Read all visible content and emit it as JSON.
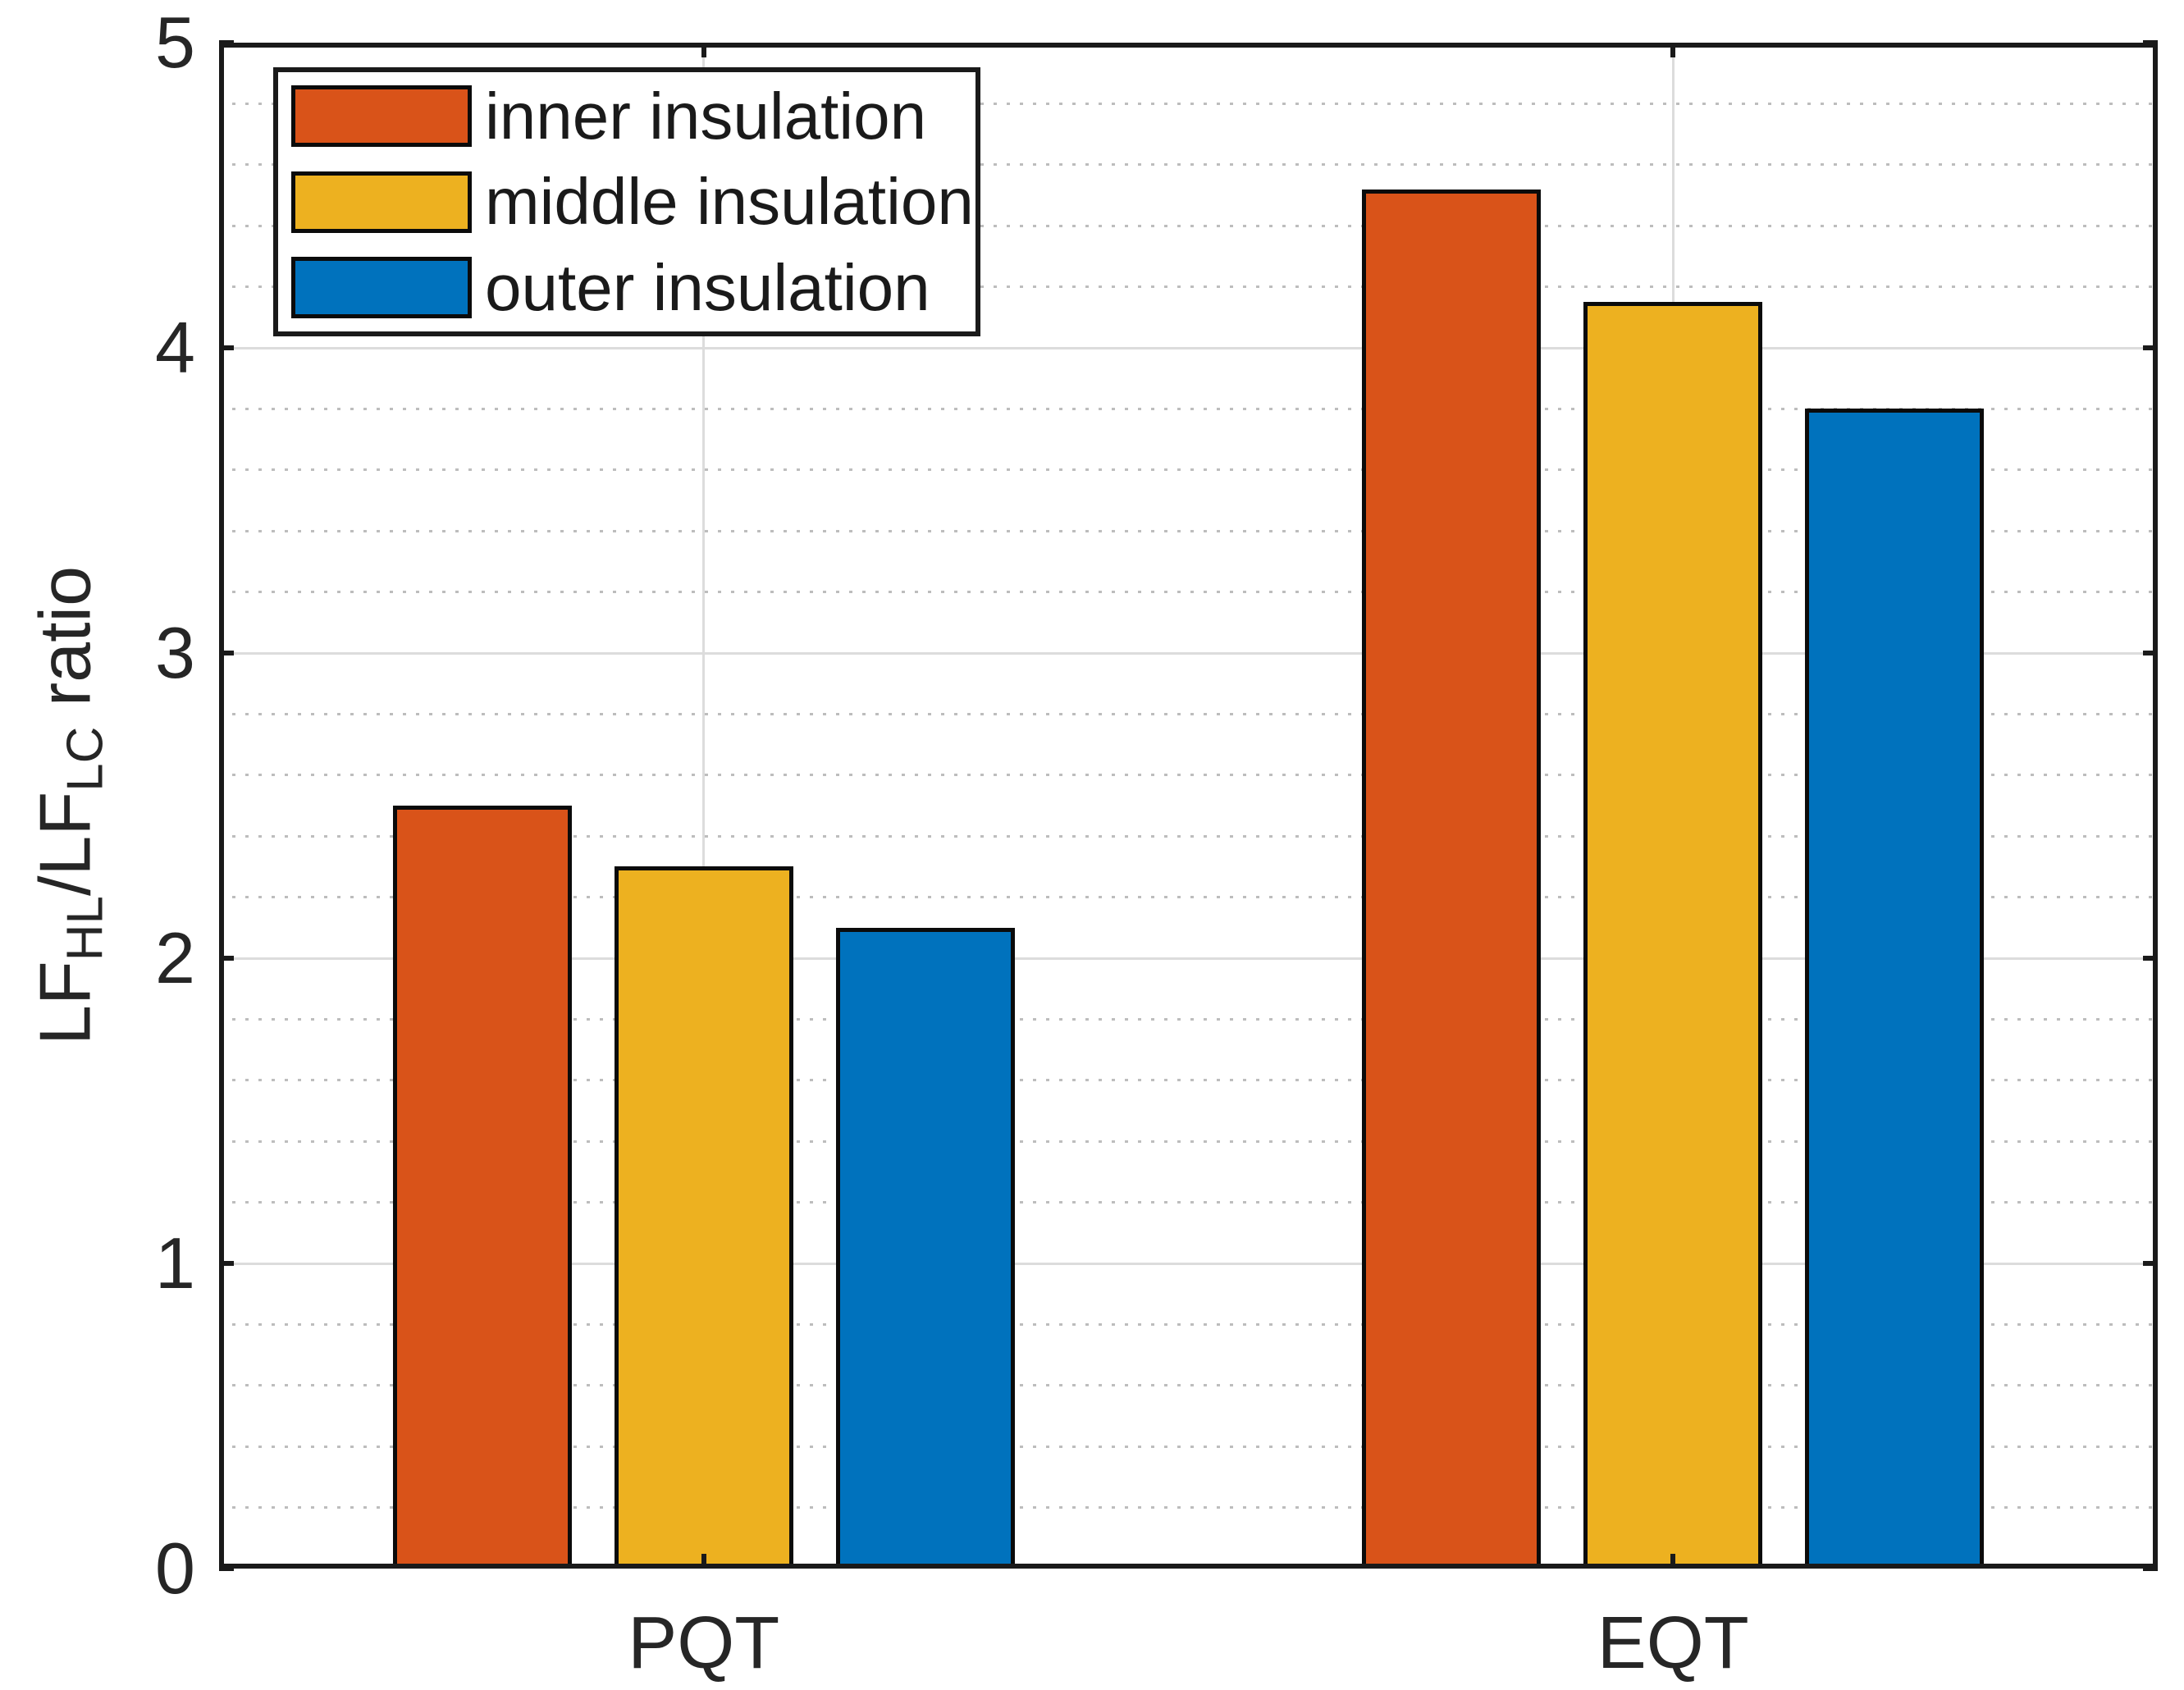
{
  "chart_data": {
    "type": "bar",
    "title": "",
    "xlabel": "",
    "ylabel": "LF_HL/LF_LC ratio",
    "ylabel_parts": [
      {
        "text": "LF",
        "sub": false
      },
      {
        "text": "HL",
        "sub": true
      },
      {
        "text": "/LF",
        "sub": false
      },
      {
        "text": "LC",
        "sub": true
      },
      {
        "text": " ratio",
        "sub": false
      }
    ],
    "categories": [
      "PQT",
      "EQT"
    ],
    "series": [
      {
        "name": "inner insulation",
        "color": "#D95319",
        "values": [
          2.5,
          4.52
        ]
      },
      {
        "name": "middle insulation",
        "color": "#EDB120",
        "values": [
          2.3,
          4.15
        ]
      },
      {
        "name": "outer insulation",
        "color": "#0072BD",
        "values": [
          2.1,
          3.8
        ]
      }
    ],
    "ylim": [
      0,
      5
    ],
    "yticks": [
      "0",
      "1",
      "2",
      "3",
      "4",
      "5"
    ],
    "minor_tick_step": 0.2,
    "grid": {
      "y_major": true,
      "y_minor_dotted": true,
      "x_major_at_category_centers": true
    },
    "legend_position": "top-left-inside"
  },
  "colors": {
    "background": "#ffffff",
    "axis_frame": "#1a1a1a",
    "bar_edge": "#0b0b0b",
    "grid_major": "#dcdcdc",
    "grid_minor": "#bdbdbd",
    "text": "#262626"
  }
}
